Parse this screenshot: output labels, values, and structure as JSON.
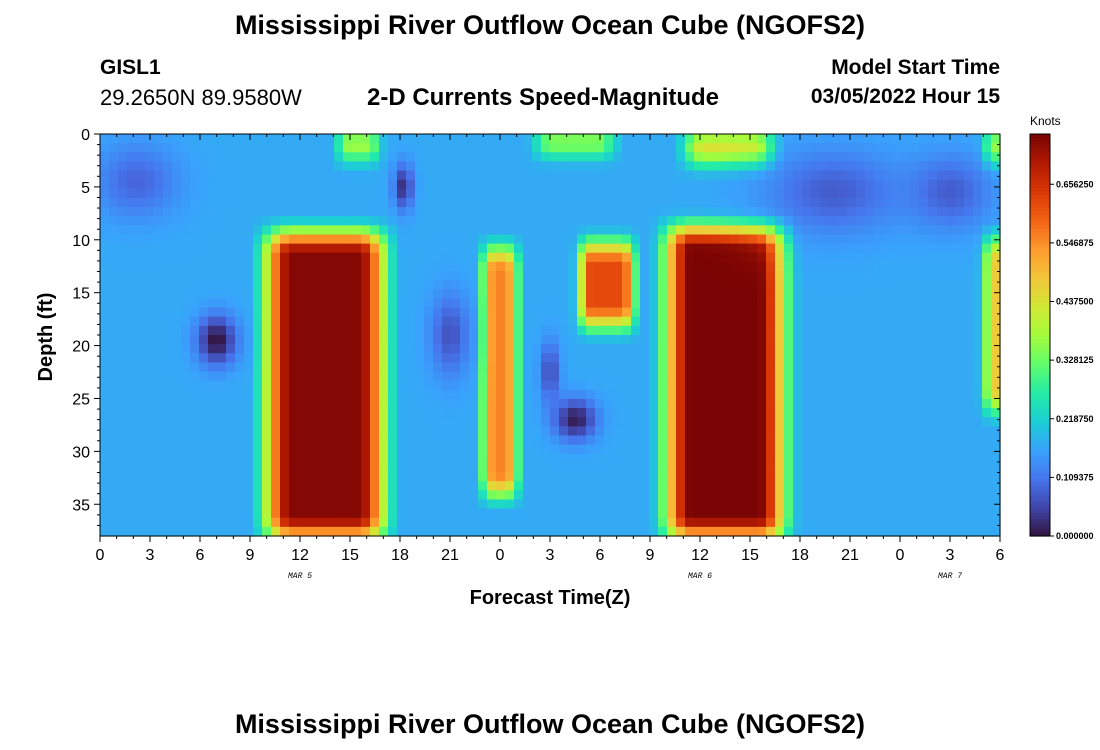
{
  "header": {
    "main_title": "Mississippi River Outflow Ocean Cube (NGOFS2)",
    "station_id": "GISL1",
    "station_coords": "29.2650N  89.9580W",
    "plot_title": "2-D Currents Speed-Magnitude",
    "model_start_label": "Model Start Time",
    "model_start_value": "03/05/2022 Hour 15"
  },
  "footer": {
    "title": "Mississippi River Outflow Ocean Cube (NGOFS2)"
  },
  "chart_data": {
    "type": "heatmap",
    "title": "2-D Currents Speed-Magnitude",
    "xlabel": "Forecast Time(Z)",
    "ylabel": "Depth (ft)",
    "x_range_hours": [
      0,
      54
    ],
    "x_ticks": [
      "0",
      "3",
      "6",
      "9",
      "12",
      "15",
      "18",
      "21",
      "0",
      "3",
      "6",
      "9",
      "12",
      "15",
      "18",
      "21",
      "0",
      "3",
      "6"
    ],
    "x_tick_values": [
      0,
      3,
      6,
      9,
      12,
      15,
      18,
      21,
      24,
      27,
      30,
      33,
      36,
      39,
      42,
      45,
      48,
      51,
      54
    ],
    "day_labels": [
      {
        "label": "MAR 5",
        "hour": 12
      },
      {
        "label": "MAR 6",
        "hour": 36
      },
      {
        "label": "MAR 7",
        "hour": 51
      }
    ],
    "y_range_ft": [
      0,
      38
    ],
    "y_ticks": [
      "0",
      "5",
      "10",
      "15",
      "20",
      "25",
      "30",
      "35"
    ],
    "y_tick_values": [
      0,
      5,
      10,
      15,
      20,
      25,
      30,
      35
    ],
    "colorbar": {
      "label": "Knots",
      "range": [
        0,
        0.75
      ],
      "tick_labels": [
        "0.000000",
        "0.109375",
        "0.218750",
        "0.328125",
        "0.437500",
        "0.546875",
        "0.656250"
      ],
      "tick_values": [
        0,
        0.109375,
        0.21875,
        0.328125,
        0.4375,
        0.546875,
        0.65625
      ],
      "colormap": [
        "#30123b",
        "#4145ab",
        "#4675ed",
        "#39a2fc",
        "#1bcfd4",
        "#24eca6",
        "#61fc6c",
        "#a4fc3b",
        "#d1e834",
        "#f3c63a",
        "#fe9b2d",
        "#f36315",
        "#d93806",
        "#b11901",
        "#7a0403"
      ]
    },
    "base_speed": 0.17,
    "features": [
      {
        "kind": "high",
        "t_start": 10.5,
        "t_end": 16.5,
        "d_start": 9.5,
        "d_end": 38,
        "peak": 0.74
      },
      {
        "kind": "high",
        "t_start": 34.5,
        "t_end": 40.5,
        "d_start": 9,
        "d_end": 38,
        "peak": 0.75
      },
      {
        "kind": "high",
        "t_start": 23.2,
        "t_end": 24.8,
        "d_start": 11,
        "d_end": 34,
        "peak": 0.56
      },
      {
        "kind": "high",
        "t_start": 29,
        "t_end": 31.8,
        "d_start": 10.5,
        "d_end": 18,
        "peak": 0.62
      },
      {
        "kind": "high",
        "t_start": 53.3,
        "t_end": 54,
        "d_start": 10,
        "d_end": 26,
        "peak": 0.5
      },
      {
        "kind": "high",
        "t_start": 14.5,
        "t_end": 16.5,
        "d_start": 0,
        "d_end": 2,
        "peak": 0.45
      },
      {
        "kind": "high",
        "t_start": 26.5,
        "t_end": 30.5,
        "d_start": 0,
        "d_end": 1.5,
        "peak": 0.47
      },
      {
        "kind": "high",
        "t_start": 35.5,
        "t_end": 40,
        "d_start": 0,
        "d_end": 2.5,
        "peak": 0.5
      },
      {
        "kind": "high",
        "t_start": 53.3,
        "t_end": 54,
        "d_start": 0,
        "d_end": 2.5,
        "peak": 0.45
      },
      {
        "kind": "low",
        "t": 7,
        "d": 19.5,
        "rt": 1.2,
        "rd": 2.4,
        "value": 0.0
      },
      {
        "kind": "low",
        "t": 18.2,
        "d": 5,
        "rt": 0.6,
        "rd": 2.2,
        "value": 0.03
      },
      {
        "kind": "low",
        "t": 28.5,
        "d": 27,
        "rt": 1.3,
        "rd": 2.0,
        "value": 0.01
      },
      {
        "kind": "low",
        "t": 27,
        "d": 22.5,
        "rt": 0.6,
        "rd": 3.0,
        "value": 0.06
      },
      {
        "kind": "low",
        "t": 21,
        "d": 19,
        "rt": 1.2,
        "rd": 4.0,
        "value": 0.07
      },
      {
        "kind": "low",
        "t": 2.2,
        "d": 4.5,
        "rt": 2.5,
        "rd": 3.5,
        "value": 0.09
      },
      {
        "kind": "low",
        "t": 44,
        "d": 5.5,
        "rt": 4.0,
        "rd": 4.0,
        "value": 0.08
      },
      {
        "kind": "low",
        "t": 51,
        "d": 5.5,
        "rt": 2.5,
        "rd": 3.5,
        "value": 0.08
      }
    ]
  }
}
